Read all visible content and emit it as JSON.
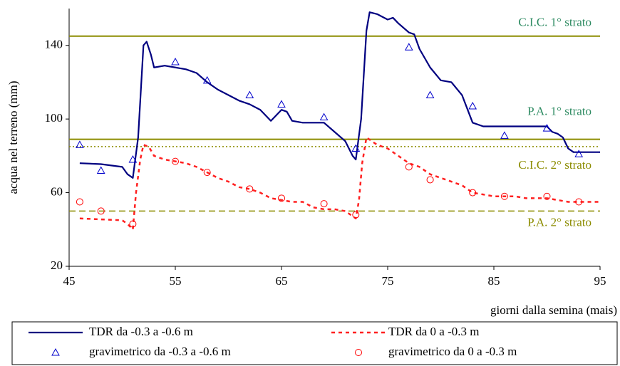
{
  "chart_data": {
    "type": "line",
    "ylabel": "acqua nel terreno (mm)",
    "xlabel": "giorni dalla semina (mais)",
    "xlim": [
      45,
      95
    ],
    "xticks": [
      45,
      55,
      65,
      75,
      85,
      95
    ],
    "ylim": [
      20,
      160
    ],
    "yticks": [
      20,
      60,
      100,
      140
    ],
    "grid": false,
    "reference_lines": [
      {
        "label": "C.I.C. 1° strato",
        "value": 145,
        "color": "#8c8c00",
        "label_color": "#2e8b62",
        "style": "solid"
      },
      {
        "label": "P.A. 1° strato",
        "value": 89,
        "color": "#8c8c00",
        "label_color": "#2e8b62",
        "style": "solid"
      },
      {
        "label": "C.I.C. 2° strato",
        "value": 85,
        "color": "#8c8c00",
        "label_color": "#8c8c00",
        "style": "dotted"
      },
      {
        "label": "P.A. 2° strato",
        "value": 50,
        "color": "#8c8c00",
        "label_color": "#8c8c00",
        "style": "dashed"
      }
    ],
    "series": [
      {
        "name": "TDR da -0.3 a -0.6 m",
        "color": "#000080",
        "marker": "line",
        "x": [
          46,
          48,
          50,
          50.5,
          51,
          51.5,
          52,
          52.3,
          52.7,
          53,
          54,
          55,
          56,
          57,
          58,
          59,
          60,
          61,
          62,
          63,
          64,
          64.5,
          65,
          65.5,
          66,
          67,
          68,
          69,
          70,
          71,
          71.7,
          72,
          72.5,
          73,
          73.3,
          74,
          75,
          75.5,
          76,
          77,
          77.5,
          78,
          79,
          80,
          81,
          82,
          83,
          84,
          86,
          88,
          90,
          90.5,
          91,
          91.5,
          92,
          92.5,
          93,
          95
        ],
        "values": [
          76,
          75.5,
          74,
          70,
          68,
          90,
          140,
          142,
          135,
          128,
          129,
          128,
          127,
          125,
          120,
          116,
          113,
          110,
          108,
          105,
          99,
          102,
          105,
          104,
          99,
          98,
          98,
          98,
          93,
          88,
          80,
          78,
          100,
          148,
          158,
          157,
          154,
          155,
          152,
          147,
          146,
          138,
          128,
          121,
          120,
          113,
          98,
          96,
          96,
          96,
          96,
          93,
          92,
          90,
          84,
          82,
          82,
          82
        ]
      },
      {
        "name": "TDR da 0 a -0.3 m",
        "color": "#ff2020",
        "marker": "dash",
        "x": [
          46,
          48,
          50,
          50.5,
          51,
          51.3,
          51.7,
          52,
          52.5,
          53,
          54,
          55,
          56,
          57,
          58,
          59,
          60,
          61,
          62,
          63,
          64,
          65,
          66,
          67,
          68,
          69,
          70,
          71,
          72,
          72.3,
          72.6,
          73,
          74,
          75,
          76,
          77,
          78,
          79,
          80,
          81,
          82,
          83,
          84,
          85,
          86,
          87,
          88,
          89,
          90,
          91,
          92,
          93,
          95
        ],
        "values": [
          46,
          45.5,
          45,
          43,
          40,
          60,
          78,
          86,
          85,
          80,
          78,
          77,
          76,
          74,
          71,
          68,
          66,
          63,
          62,
          60,
          57,
          56,
          55,
          55,
          52,
          51,
          51,
          50,
          46,
          56,
          76,
          90,
          86,
          84,
          80,
          76,
          74,
          70,
          68,
          66,
          64,
          60,
          59,
          58,
          58,
          58,
          57,
          57,
          57,
          56,
          55,
          55,
          55
        ]
      },
      {
        "name": "gravimetrico da -0.3 a -0.6 m",
        "color": "#0000cc",
        "marker": "triangle",
        "x": [
          46,
          48,
          51,
          55,
          58,
          62,
          65,
          69,
          72,
          77,
          79,
          83,
          86,
          90,
          93
        ],
        "values": [
          86,
          72,
          78,
          131,
          121,
          113,
          108,
          101,
          84,
          139,
          113,
          107,
          91,
          95,
          81
        ]
      },
      {
        "name": "gravimetrico da 0 a -0.3 m",
        "color": "#ff0000",
        "marker": "circle",
        "x": [
          46,
          48,
          51,
          55,
          58,
          62,
          65,
          69,
          72,
          77,
          79,
          83,
          86,
          90,
          93
        ],
        "values": [
          55,
          50,
          43,
          77,
          71,
          62,
          57,
          54,
          48,
          74,
          67,
          60,
          58,
          58,
          55
        ]
      }
    ]
  }
}
